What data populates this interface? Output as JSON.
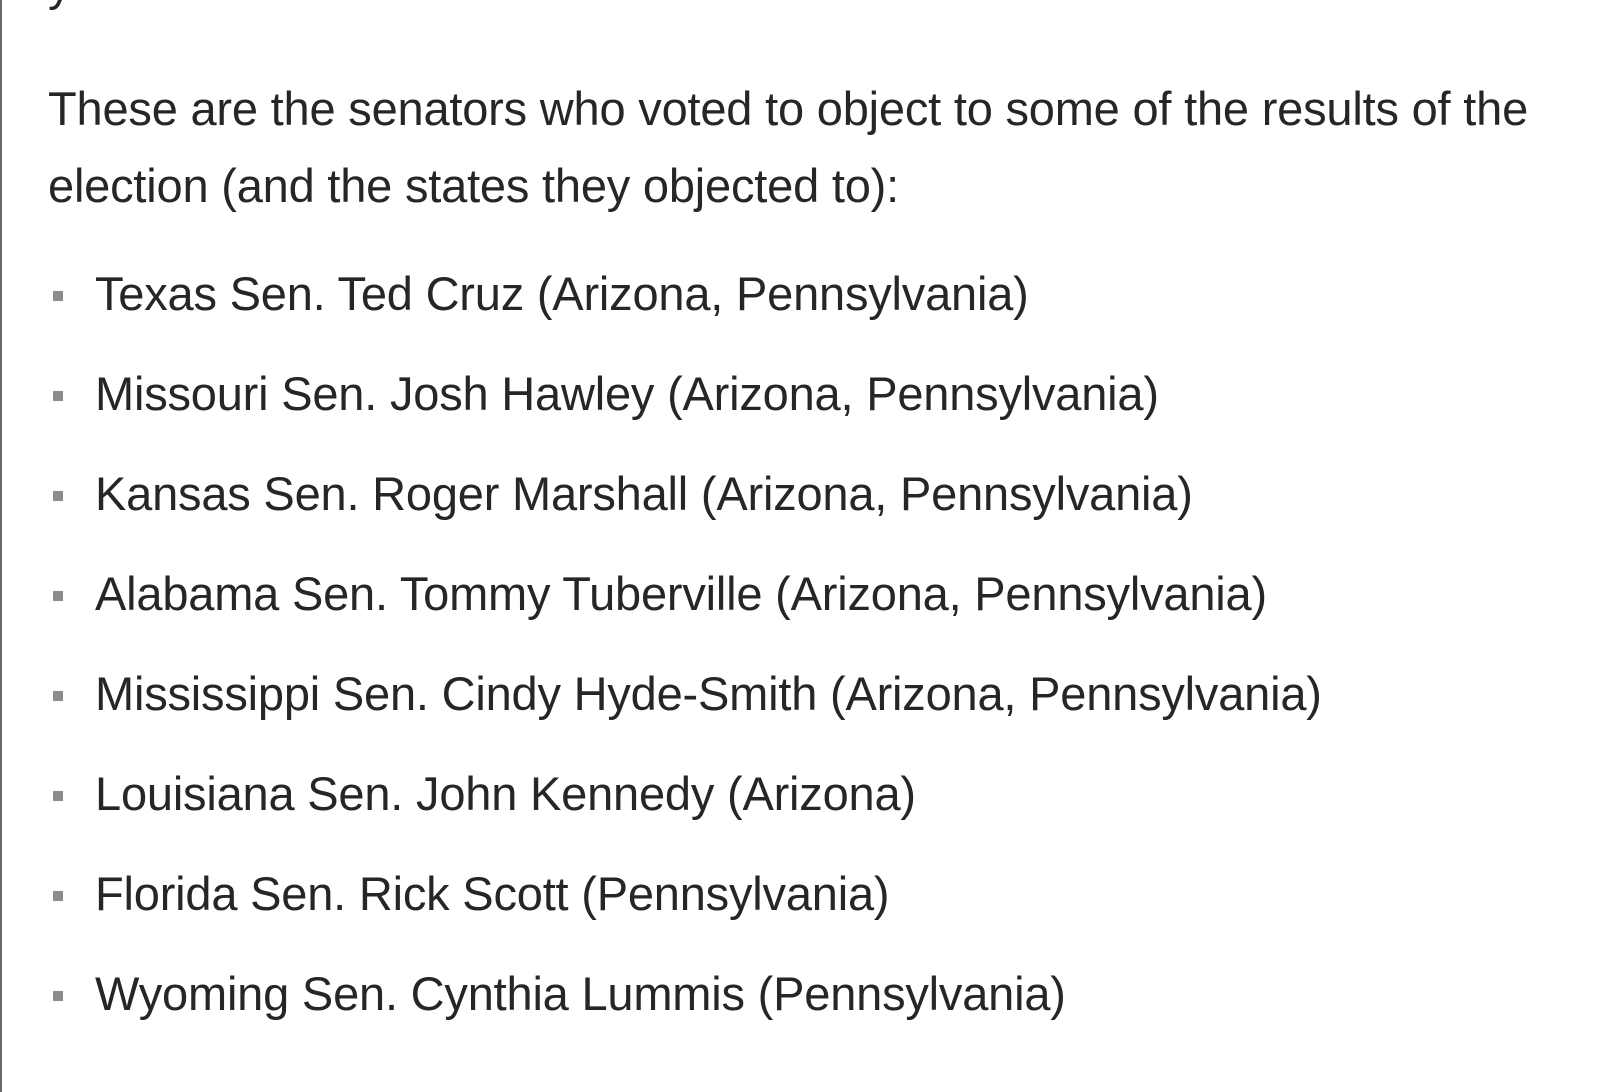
{
  "article": {
    "top_fragment": "y",
    "intro": "These are the senators who voted to object to some of the results of the election (and the states they objected to):",
    "senators": [
      {
        "text": "Texas Sen. Ted Cruz (Arizona, Pennsylvania)"
      },
      {
        "text": "Missouri Sen. Josh Hawley (Arizona, Pennsylvania)"
      },
      {
        "text": "Kansas Sen. Roger Marshall (Arizona, Pennsylvania)"
      },
      {
        "text": "Alabama Sen. Tommy Tuberville (Arizona, Pennsylvania)"
      },
      {
        "text": "Mississippi Sen. Cindy Hyde-Smith (Arizona, Pennsylvania)"
      },
      {
        "text": "Louisiana Sen. John Kennedy (Arizona)"
      },
      {
        "text": "Florida Sen. Rick Scott (Pennsylvania)"
      },
      {
        "text": "Wyoming Sen. Cynthia Lummis (Pennsylvania)"
      }
    ]
  }
}
